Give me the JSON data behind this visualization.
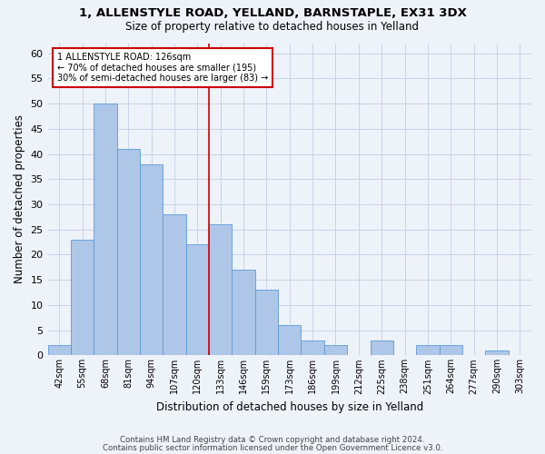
{
  "title_line1": "1, ALLENSTYLE ROAD, YELLAND, BARNSTAPLE, EX31 3DX",
  "title_line2": "Size of property relative to detached houses in Yelland",
  "xlabel": "Distribution of detached houses by size in Yelland",
  "ylabel": "Number of detached properties",
  "categories": [
    "42sqm",
    "55sqm",
    "68sqm",
    "81sqm",
    "94sqm",
    "107sqm",
    "120sqm",
    "133sqm",
    "146sqm",
    "159sqm",
    "173sqm",
    "186sqm",
    "199sqm",
    "212sqm",
    "225sqm",
    "238sqm",
    "251sqm",
    "264sqm",
    "277sqm",
    "290sqm",
    "303sqm"
  ],
  "values": [
    2,
    23,
    50,
    41,
    38,
    28,
    22,
    26,
    17,
    13,
    6,
    3,
    2,
    0,
    3,
    0,
    2,
    2,
    0,
    1,
    0
  ],
  "bar_color": "#aec6e8",
  "bar_edge_color": "#5b9bd5",
  "ylim": [
    0,
    62
  ],
  "yticks": [
    0,
    5,
    10,
    15,
    20,
    25,
    30,
    35,
    40,
    45,
    50,
    55,
    60
  ],
  "property_bin_index": 6,
  "annotation_title": "1 ALLENSTYLE ROAD: 126sqm",
  "annotation_line2": "← 70% of detached houses are smaller (195)",
  "annotation_line3": "30% of semi-detached houses are larger (83) →",
  "vline_color": "#cc0000",
  "annotation_box_color": "#ffffff",
  "annotation_box_edge": "#cc0000",
  "footer_line1": "Contains HM Land Registry data © Crown copyright and database right 2024.",
  "footer_line2": "Contains public sector information licensed under the Open Government Licence v3.0.",
  "bg_color": "#eef2f9",
  "grid_color": "#c8d4e8"
}
